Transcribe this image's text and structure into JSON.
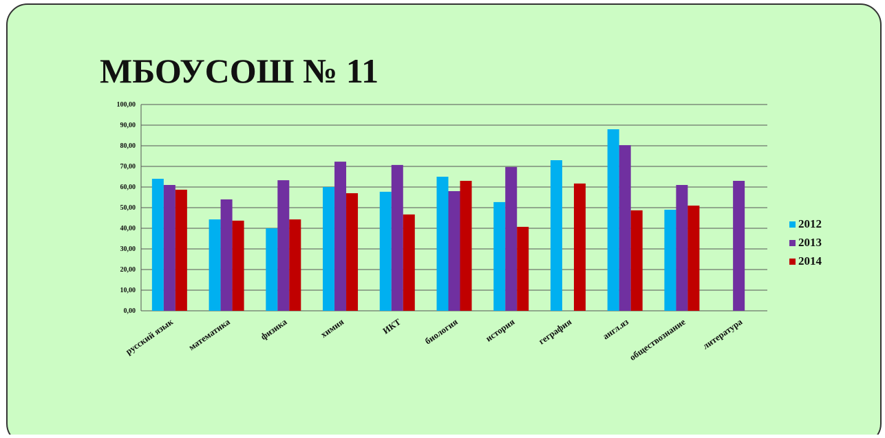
{
  "chart_data": {
    "type": "bar",
    "title": "МБОУСОШ № 11",
    "categories": [
      "русский язык",
      "математика",
      "физика",
      "химия",
      "ИКТ",
      "биология",
      "история",
      "геграфия",
      "англ.яз",
      "обществознание",
      "литература"
    ],
    "series": [
      {
        "name": "2012",
        "color": "#00b0f0",
        "values": [
          64,
          44.3,
          40,
          60,
          57.7,
          65,
          52.7,
          73,
          88,
          49,
          null
        ]
      },
      {
        "name": "2013",
        "color": "#7030a0",
        "values": [
          61,
          54,
          63.3,
          72.3,
          70.7,
          58,
          69.7,
          null,
          80.3,
          61,
          63
        ]
      },
      {
        "name": "2014",
        "color": "#c00000",
        "values": [
          58.7,
          43.7,
          44.3,
          57,
          46.7,
          63,
          40.7,
          61.7,
          48.7,
          51,
          null
        ]
      }
    ],
    "ylim": [
      0,
      100
    ],
    "yticks": [
      {
        "value": 0,
        "label": "0,00"
      },
      {
        "value": 10,
        "label": "10,00"
      },
      {
        "value": 20,
        "label": "20,00"
      },
      {
        "value": 30,
        "label": "30,00"
      },
      {
        "value": 40,
        "label": "40,00"
      },
      {
        "value": 50,
        "label": "50,00"
      },
      {
        "value": 60,
        "label": "60,00"
      },
      {
        "value": 70,
        "label": "70,00"
      },
      {
        "value": 80,
        "label": "80,00"
      },
      {
        "value": 90,
        "label": "90,00"
      },
      {
        "value": 100,
        "label": "100,00"
      }
    ],
    "grid": true,
    "legend": "right"
  }
}
